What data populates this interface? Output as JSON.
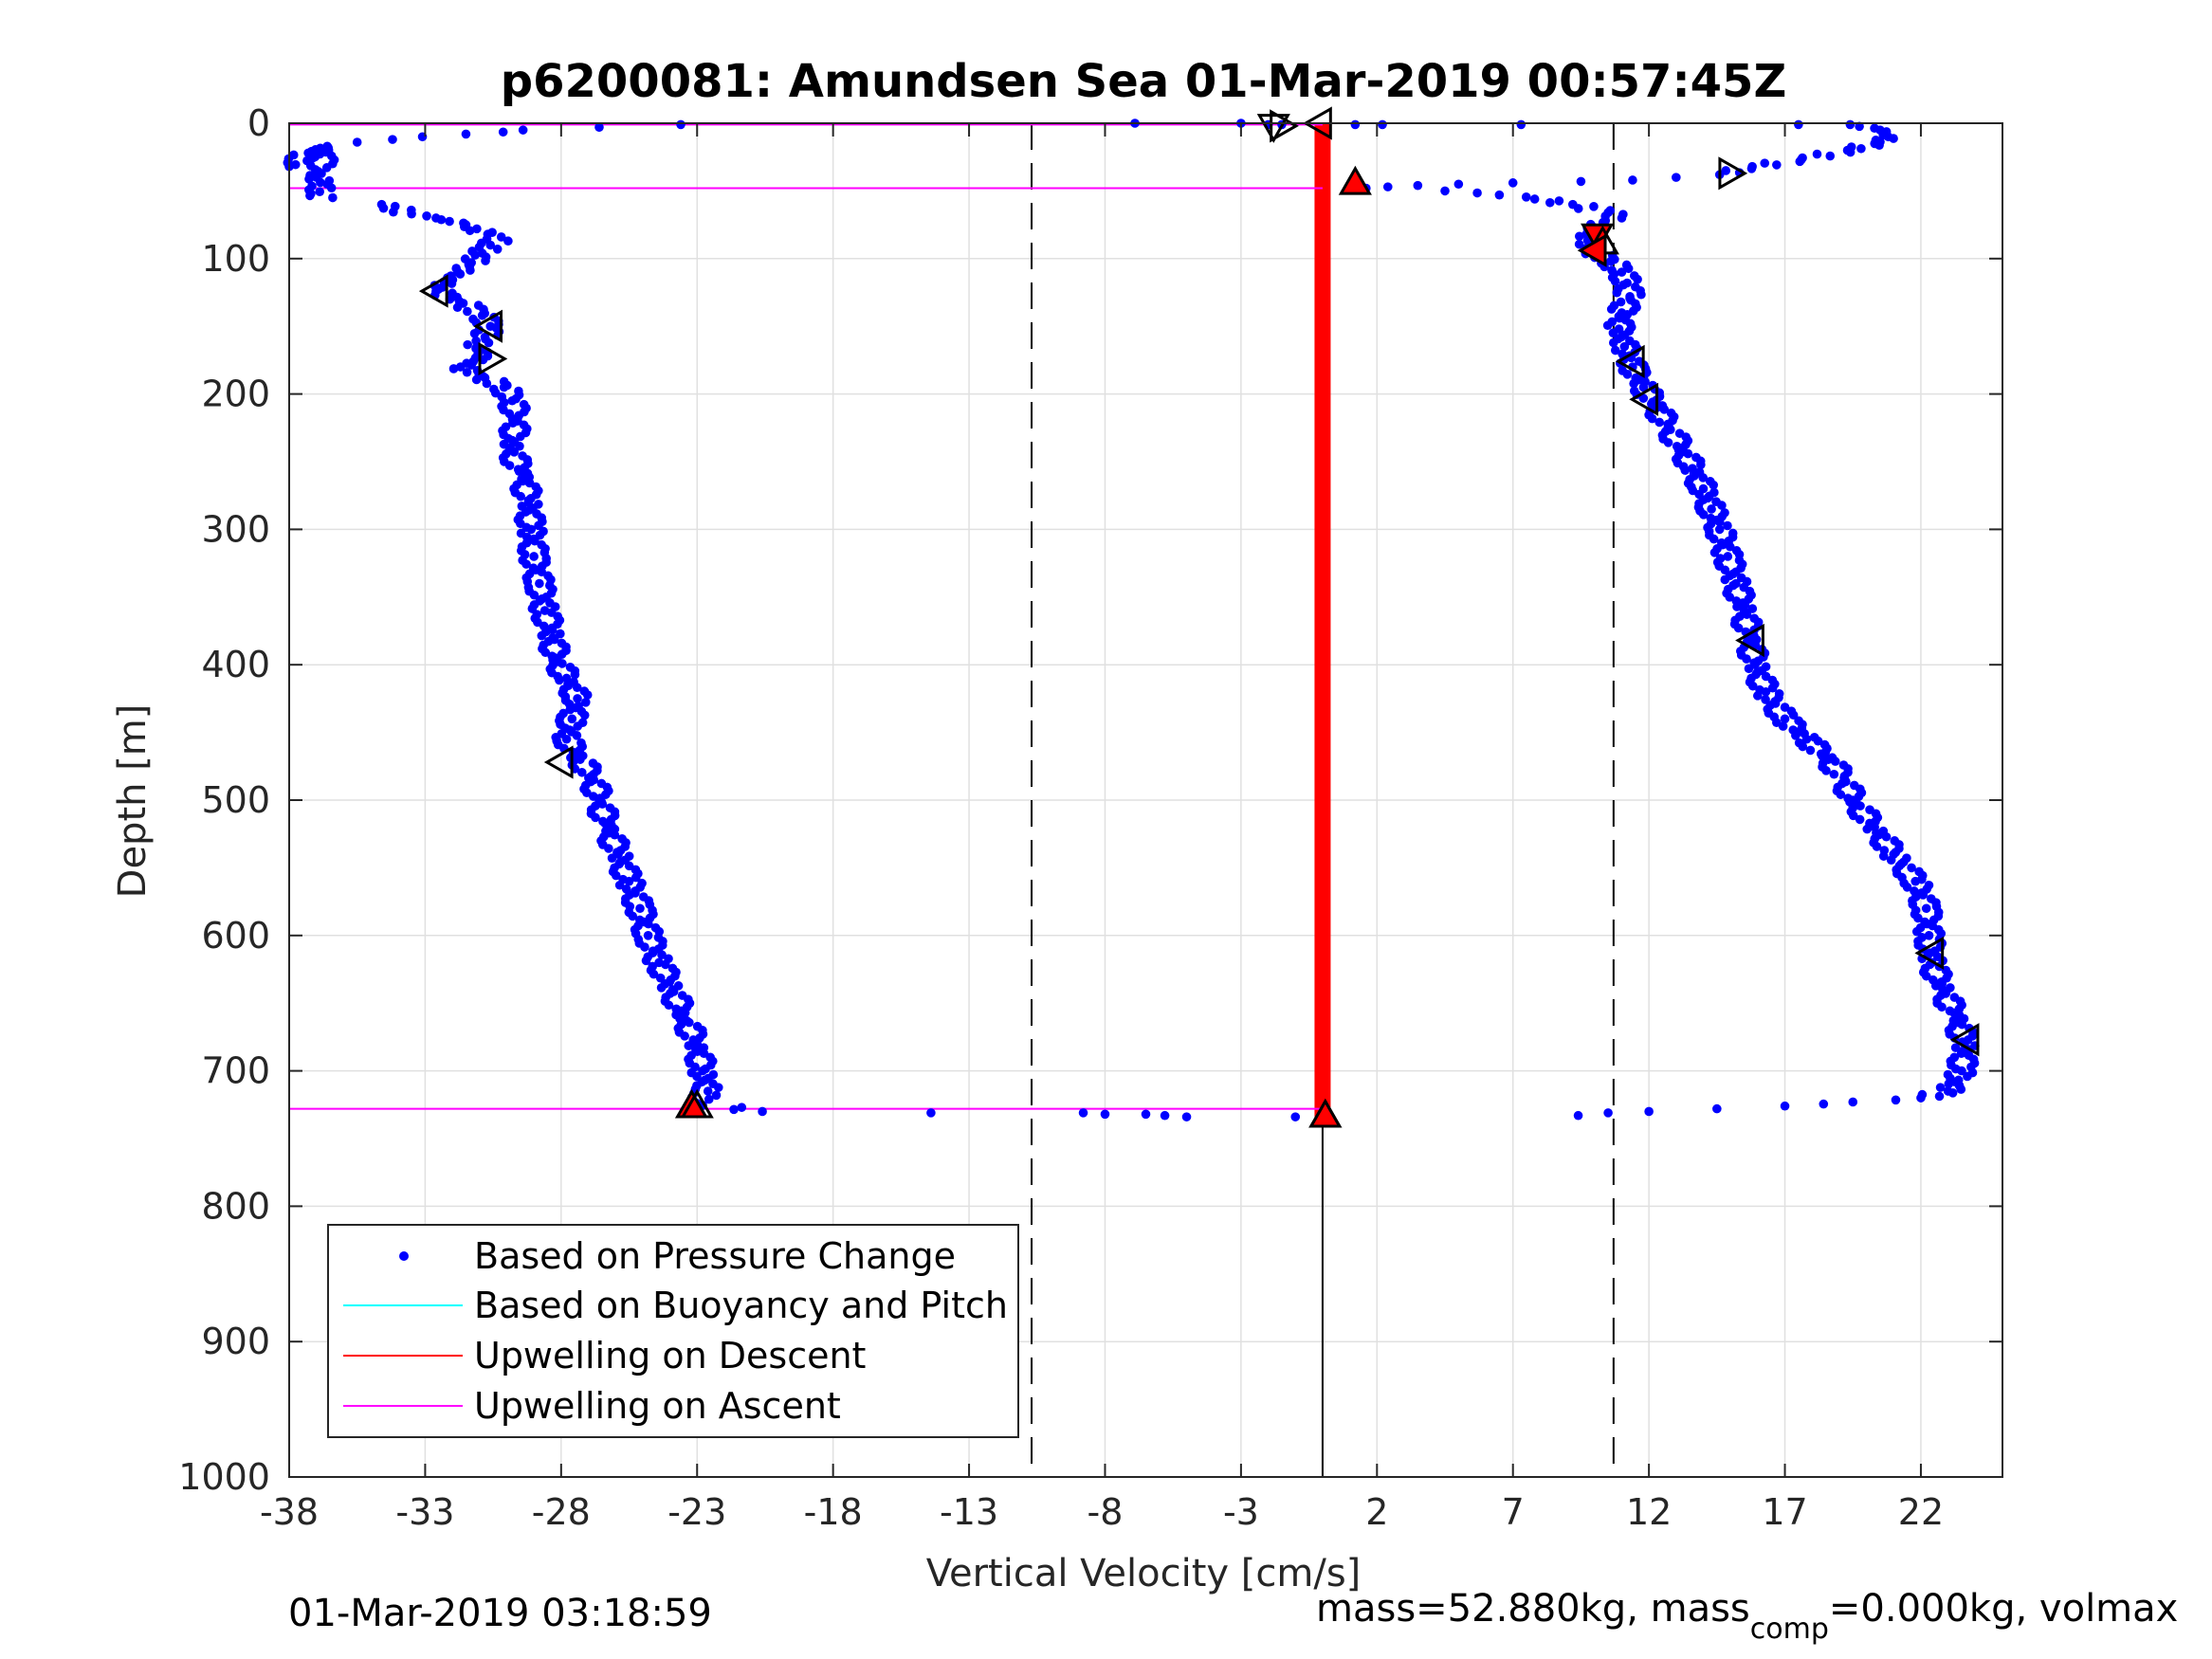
{
  "chart_data": {
    "type": "scatter",
    "title": "p6200081: Amundsen Sea 01-Mar-2019 00:57:45Z",
    "xlabel": "Vertical Velocity [cm/s]",
    "ylabel": "Depth [m]",
    "xlim": [
      -38,
      25
    ],
    "ylim": [
      0,
      1000
    ],
    "y_reversed": true,
    "grid": true,
    "x_ticks": [
      -38,
      -33,
      -28,
      -23,
      -18,
      -13,
      -8,
      -3,
      2,
      7,
      12,
      17,
      22
    ],
    "y_ticks": [
      0,
      100,
      200,
      300,
      400,
      500,
      600,
      700,
      800,
      900,
      1000
    ],
    "x_tick_labels": [
      "-38",
      "-33",
      "-28",
      "-23",
      "-18",
      "-13",
      "-8",
      "-3",
      "2",
      "7",
      "12",
      "17",
      "22"
    ],
    "y_tick_labels": [
      "0",
      "100",
      "200",
      "300",
      "400",
      "500",
      "600",
      "700",
      "800",
      "900",
      "1000"
    ],
    "legend": {
      "placement": "bottom-left",
      "entries": [
        {
          "label": "Based on Pressure Change",
          "color": "#0000ff",
          "marker": "dot"
        },
        {
          "label": "Based on Buoyancy and Pitch",
          "color": "#00ffff",
          "marker": "line"
        },
        {
          "label": "Upwelling on Descent",
          "color": "#ff0000",
          "marker": "line"
        },
        {
          "label": "Upwelling on Ascent",
          "color": "#ff00ff",
          "marker": "line"
        }
      ]
    },
    "colors": {
      "pressure": "#0000ff",
      "buoyancy": "#00ffff",
      "descent": "#ff0000",
      "ascent": "#ff00ff"
    },
    "reference_lines": {
      "dashed_x": [
        -10.7,
        10.7
      ],
      "solid_x_segment": {
        "x": 0,
        "y_from": 735,
        "y_to": 1000
      },
      "descent_bar": {
        "x": 0,
        "y_from": 0,
        "y_to": 735
      },
      "ascent_horizontal": [
        {
          "y": 1,
          "x_from": -38,
          "x_to": 0
        },
        {
          "y": 48,
          "x_from": -38,
          "x_to": 0
        },
        {
          "y": 728,
          "x_from": -38,
          "x_to": 0
        }
      ]
    },
    "ascent_profile": [
      [
        -38.0,
        32
      ],
      [
        -37.3,
        22
      ],
      [
        -36.6,
        17
      ],
      [
        -37.0,
        40
      ],
      [
        -36.6,
        45
      ],
      [
        -37.2,
        52
      ],
      [
        -36.4,
        55
      ],
      [
        -35.5,
        14
      ],
      [
        -34.2,
        12
      ],
      [
        -33.1,
        10
      ],
      [
        -31.5,
        8
      ],
      [
        -29.4,
        5
      ],
      [
        -26.6,
        3
      ],
      [
        -23.6,
        1
      ],
      [
        -34.6,
        60
      ],
      [
        -33.5,
        67
      ],
      [
        -32.6,
        70
      ],
      [
        -31.5,
        75
      ],
      [
        -31.1,
        78
      ],
      [
        -30.7,
        82
      ],
      [
        -30.2,
        84
      ],
      [
        -30.6,
        90
      ],
      [
        -30.9,
        96
      ],
      [
        -31.3,
        103
      ],
      [
        -31.8,
        110
      ],
      [
        -32.3,
        117
      ],
      [
        -32.6,
        124
      ],
      [
        -31.6,
        133
      ],
      [
        -30.9,
        142
      ],
      [
        -30.6,
        150
      ],
      [
        -30.8,
        158
      ],
      [
        -31.1,
        165
      ],
      [
        -30.7,
        172
      ],
      [
        -31.7,
        180
      ],
      [
        -30.8,
        188
      ],
      [
        -30.1,
        195
      ],
      [
        -29.8,
        205
      ],
      [
        -29.6,
        220
      ],
      [
        -29.9,
        240
      ],
      [
        -29.4,
        260
      ],
      [
        -29.2,
        280
      ],
      [
        -29.1,
        300
      ],
      [
        -29.0,
        320
      ],
      [
        -28.8,
        340
      ],
      [
        -28.6,
        360
      ],
      [
        -28.3,
        380
      ],
      [
        -28.2,
        395
      ],
      [
        -27.8,
        410
      ],
      [
        -27.4,
        425
      ],
      [
        -27.6,
        440
      ],
      [
        -27.8,
        455
      ],
      [
        -27.3,
        470
      ],
      [
        -26.8,
        485
      ],
      [
        -26.6,
        500
      ],
      [
        -26.3,
        520
      ],
      [
        -25.9,
        540
      ],
      [
        -25.5,
        560
      ],
      [
        -25.1,
        580
      ],
      [
        -24.8,
        600
      ],
      [
        -24.4,
        620
      ],
      [
        -23.9,
        640
      ],
      [
        -23.5,
        660
      ],
      [
        -23.0,
        680
      ],
      [
        -22.8,
        700
      ],
      [
        -22.6,
        715
      ],
      [
        -23.0,
        724
      ],
      [
        -20.6,
        730
      ],
      [
        -14.4,
        731
      ],
      [
        -8.8,
        731
      ],
      [
        -8.0,
        732
      ],
      [
        -6.5,
        732
      ],
      [
        -5.8,
        733
      ],
      [
        -5.0,
        734
      ],
      [
        -1.0,
        734
      ]
    ],
    "descent_profile": [
      [
        -6.9,
        0
      ],
      [
        -3.0,
        0
      ],
      [
        -2.0,
        1
      ],
      [
        -1.5,
        1
      ],
      [
        1.2,
        1
      ],
      [
        2.2,
        1
      ],
      [
        7.3,
        1
      ],
      [
        17.5,
        1
      ],
      [
        19.4,
        1
      ],
      [
        20.5,
        5
      ],
      [
        20.8,
        10
      ],
      [
        20.3,
        15
      ],
      [
        19.3,
        20
      ],
      [
        17.6,
        27
      ],
      [
        15.8,
        32
      ],
      [
        14.6,
        38
      ],
      [
        13.0,
        40
      ],
      [
        11.4,
        42
      ],
      [
        9.5,
        43
      ],
      [
        7.0,
        44
      ],
      [
        5.0,
        45
      ],
      [
        3.5,
        46
      ],
      [
        2.4,
        47
      ],
      [
        1.6,
        48
      ],
      [
        4.5,
        50
      ],
      [
        6.5,
        53
      ],
      [
        7.8,
        56
      ],
      [
        9.2,
        60
      ],
      [
        10.5,
        66
      ],
      [
        11.0,
        70
      ],
      [
        10.4,
        72
      ],
      [
        9.9,
        76
      ],
      [
        9.7,
        82
      ],
      [
        9.8,
        88
      ],
      [
        10.0,
        95
      ],
      [
        10.6,
        102
      ],
      [
        11.0,
        110
      ],
      [
        11.2,
        118
      ],
      [
        11.3,
        128
      ],
      [
        11.0,
        140
      ],
      [
        10.9,
        152
      ],
      [
        11.1,
        165
      ],
      [
        11.4,
        180
      ],
      [
        11.8,
        195
      ],
      [
        12.3,
        210
      ],
      [
        12.7,
        225
      ],
      [
        13.2,
        240
      ],
      [
        13.6,
        255
      ],
      [
        14.0,
        270
      ],
      [
        14.3,
        285
      ],
      [
        14.6,
        300
      ],
      [
        14.9,
        320
      ],
      [
        15.2,
        340
      ],
      [
        15.5,
        360
      ],
      [
        15.7,
        380
      ],
      [
        15.9,
        400
      ],
      [
        16.3,
        420
      ],
      [
        17.0,
        440
      ],
      [
        17.8,
        455
      ],
      [
        18.6,
        470
      ],
      [
        19.2,
        485
      ],
      [
        19.5,
        500
      ],
      [
        20.3,
        520
      ],
      [
        21.0,
        540
      ],
      [
        21.8,
        560
      ],
      [
        22.2,
        580
      ],
      [
        22.3,
        600
      ],
      [
        22.4,
        620
      ],
      [
        22.8,
        640
      ],
      [
        23.3,
        660
      ],
      [
        23.6,
        680
      ],
      [
        23.5,
        700
      ],
      [
        23.0,
        715
      ],
      [
        22.0,
        720
      ],
      [
        19.5,
        723
      ],
      [
        17.0,
        726
      ],
      [
        14.5,
        728
      ],
      [
        12.0,
        730
      ],
      [
        10.5,
        731
      ],
      [
        9.4,
        733
      ]
    ],
    "markers": [
      {
        "kind": "open",
        "dir": "left",
        "x": -32.6,
        "y": 124
      },
      {
        "kind": "open",
        "dir": "left",
        "x": -30.6,
        "y": 150
      },
      {
        "kind": "open",
        "dir": "right",
        "x": -30.6,
        "y": 174
      },
      {
        "kind": "open",
        "dir": "left",
        "x": -28.0,
        "y": 472
      },
      {
        "kind": "filled",
        "dir": "up",
        "x": -23.2,
        "y": 726
      },
      {
        "kind": "open",
        "dir": "up",
        "x": -23.0,
        "y": 726
      },
      {
        "kind": "open",
        "dir": "right",
        "x": -1.5,
        "y": 2
      },
      {
        "kind": "open",
        "dir": "down",
        "x": -1.8,
        "y": 2
      },
      {
        "kind": "open",
        "dir": "left",
        "x": -0.1,
        "y": 0
      },
      {
        "kind": "filled",
        "dir": "up",
        "x": 1.2,
        "y": 44
      },
      {
        "kind": "open",
        "dir": "right",
        "x": 15.0,
        "y": 37
      },
      {
        "kind": "filled",
        "dir": "down",
        "x": 10.1,
        "y": 83
      },
      {
        "kind": "open",
        "dir": "up",
        "x": 10.3,
        "y": 88
      },
      {
        "kind": "filled",
        "dir": "left",
        "x": 10.0,
        "y": 94
      },
      {
        "kind": "open",
        "dir": "left",
        "x": 11.4,
        "y": 176
      },
      {
        "kind": "open",
        "dir": "left",
        "x": 11.9,
        "y": 204
      },
      {
        "kind": "open",
        "dir": "left",
        "x": 15.8,
        "y": 382
      },
      {
        "kind": "open",
        "dir": "left",
        "x": 22.4,
        "y": 613
      },
      {
        "kind": "open",
        "dir": "left",
        "x": 23.7,
        "y": 677
      },
      {
        "kind": "filled",
        "dir": "up",
        "x": 0.1,
        "y": 733
      },
      {
        "kind": "open",
        "dir": "up",
        "x": 0.1,
        "y": 733
      }
    ]
  },
  "footer": {
    "timestamp": "01-Mar-2019 03:18:59",
    "mass_prefix": "mass=52.880kg, mass",
    "mass_sub": "comp",
    "mass_suffix": "=0.000kg, volmax"
  }
}
